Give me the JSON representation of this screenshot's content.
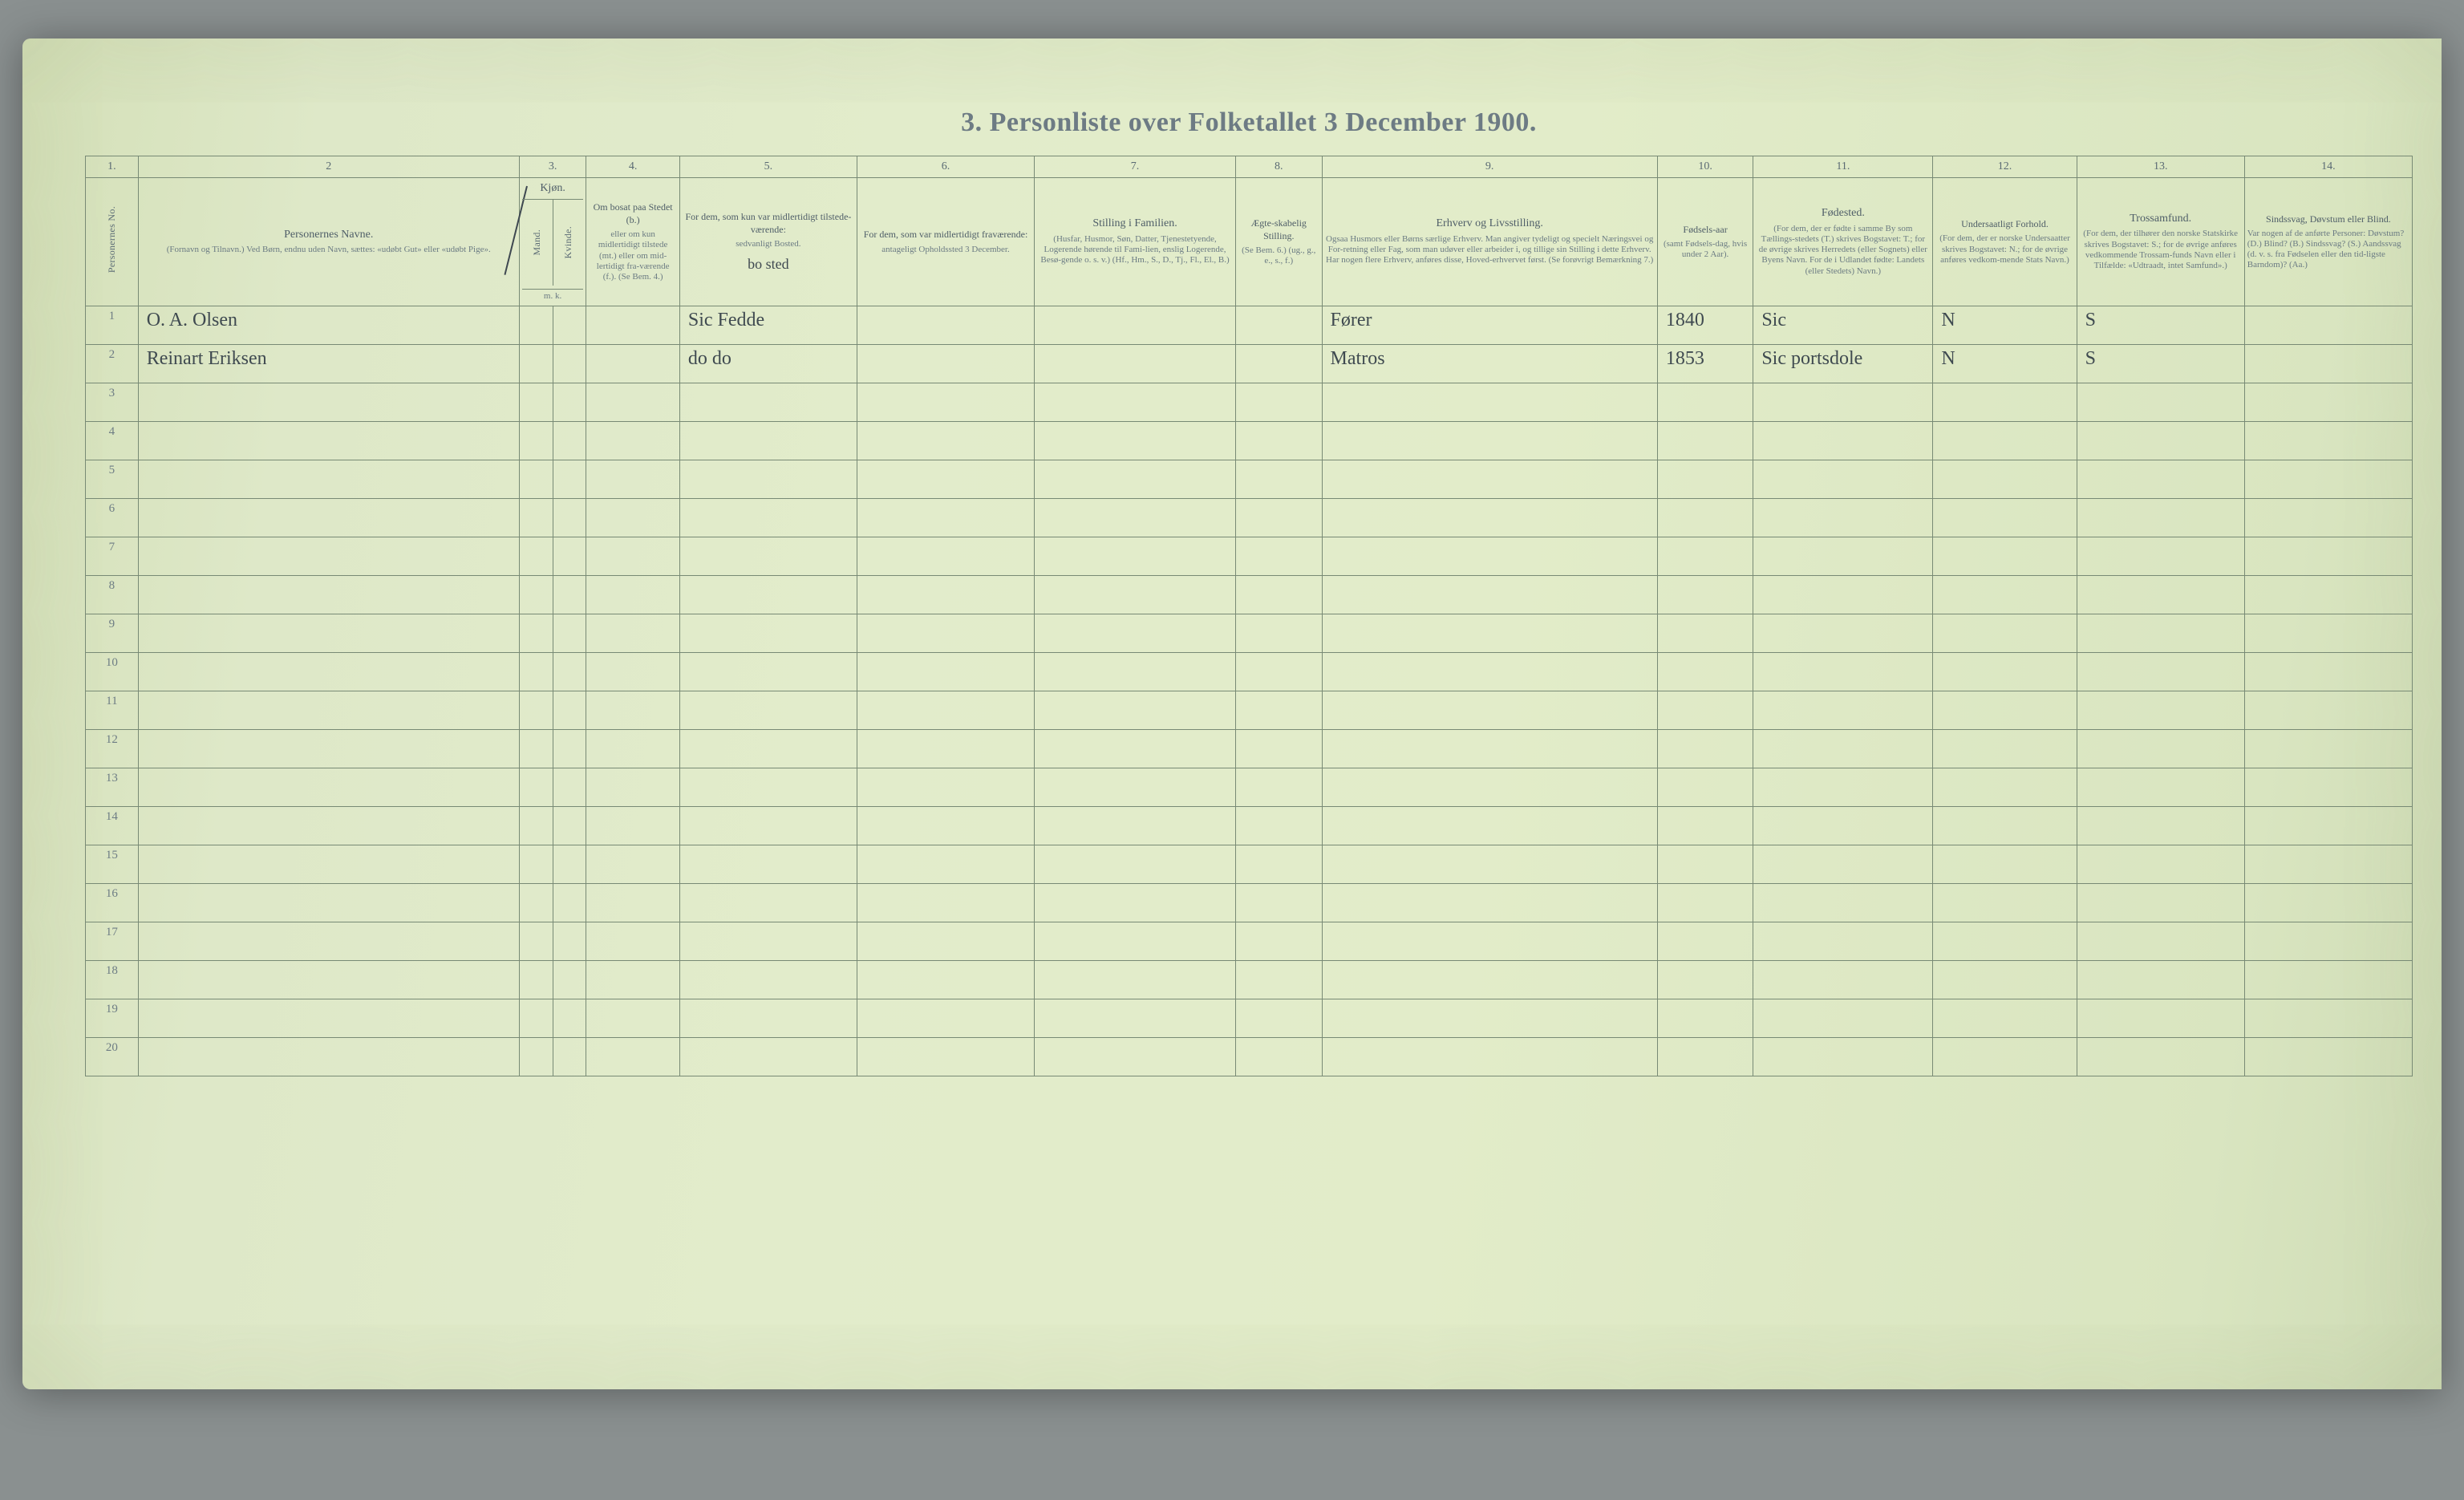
{
  "title": "3.  Personliste over Folketallet 3 December 1900.",
  "colors": {
    "paper_gradient": [
      "#d4e0b8",
      "#e2eccb",
      "#cedbb5"
    ],
    "rule": "#788a75",
    "print_text": "#5a6a73",
    "handwriting": "#3f4a50",
    "background_mat": "#8a9090"
  },
  "columns": {
    "numbers": [
      "1.",
      "2",
      "3.",
      "4.",
      "5.",
      "6.",
      "7.",
      "8.",
      "9.",
      "10.",
      "11.",
      "12.",
      "13.",
      "14."
    ],
    "c1": {
      "label": "Personernes No."
    },
    "c2": {
      "main": "Personernes Navne.",
      "sub": "(Fornavn og Tilnavn.)\nVed Børn, endnu uden Navn, sættes: «udøbt Gut»\neller «udøbt Pige»."
    },
    "c3": {
      "main": "Kjøn.",
      "sub_m": "Mand.",
      "sub_k": "Kvinde.",
      "foot": "m.  k."
    },
    "c4": {
      "main": "Om bosat paa Stedet (b.)",
      "sub": "eller om kun midlertidigt tilstede (mt.) eller om mid-lertidigt fra-værende (f.).\n(Se Bem. 4.)"
    },
    "c5": {
      "main": "For dem, som kun var midlertidigt tilstede-værende:",
      "sub": "sedvanligt Bosted.",
      "hand": "bo sted"
    },
    "c6": {
      "main": "For dem, som var midlertidigt fraværende:",
      "sub": "antageligt Opholdssted 3 December."
    },
    "c7": {
      "main": "Stilling i Familien.",
      "sub": "(Husfar, Husmor, Søn, Datter, Tjenestetyende, Logerende hørende til Fami-lien, enslig Logerende, Besø-gende o. s. v.)\n(Hf., Hm., S., D., Tj., Fl., El., B.)"
    },
    "c8": {
      "main": "Ægte-skabelig Stilling.",
      "sub": "(Se Bem. 6.)\n(ug., g., e., s., f.)"
    },
    "c9": {
      "main": "Erhverv og Livsstilling.",
      "sub": "Ogsaa Husmors eller Børns særlige Erhverv.\nMan angiver tydeligt og specielt Næringsvei og For-retning eller Fag, som man udøver eller arbeider i, og tillige sin Stilling i dette Erhverv.\nHar nogen flere Erhverv, anføres disse, Hoved-erhvervet først.\n(Se forøvrigt Bemærkning 7.)"
    },
    "c10": {
      "main": "Fødsels-aar",
      "sub": "(samt Fødsels-dag, hvis under 2 Aar)."
    },
    "c11": {
      "top": "Fødested.",
      "sub": "(For dem, der er fødte i samme By som Tællings-stedets (T.) skrives Bogstavet: T.; for de øvrige skrives Herredets (eller Sognets) eller Byens Navn.\nFor de i Udlandet fødte: Landets (eller Stedets) Navn.)"
    },
    "c12": {
      "main": "Undersaatligt Forhold.",
      "sub": "(For dem, der er norske Undersaatter skrives Bogstavet: N.; for de øvrige anføres vedkom-mende Stats Navn.)"
    },
    "c13": {
      "main": "Trossamfund.",
      "sub": "(For dem, der tilhører den norske Statskirke skrives Bogstavet: S.; for de øvrige anføres vedkommende Trossam-funds Navn eller i Tilfælde: «Udtraadt, intet Samfund».)"
    },
    "c14": {
      "main": "Sindssvag, Døvstum eller Blind.",
      "sub": "Var nogen af de anførte Personer:\nDøvstum?   (D.)\nBlind?        (B.)\nSindssvag? (S.)\nAandssvag (d. v. s. fra Fødselen eller den tid-ligste Barndom)? (Aa.)"
    }
  },
  "rows": [
    {
      "no": "1",
      "name": "O. A. Olsen",
      "status": "Sic Fedde",
      "occupation": "Fører",
      "birth_year": "1840",
      "birthplace": "Sic",
      "nationality": "N",
      "religion": "S"
    },
    {
      "no": "2",
      "name": "Reinart Eriksen",
      "status": "do   do",
      "occupation": "Matros",
      "birth_year": "1853",
      "birthplace": "Sic portsdole",
      "nationality": "N",
      "religion": "S"
    }
  ],
  "row_count": 20
}
